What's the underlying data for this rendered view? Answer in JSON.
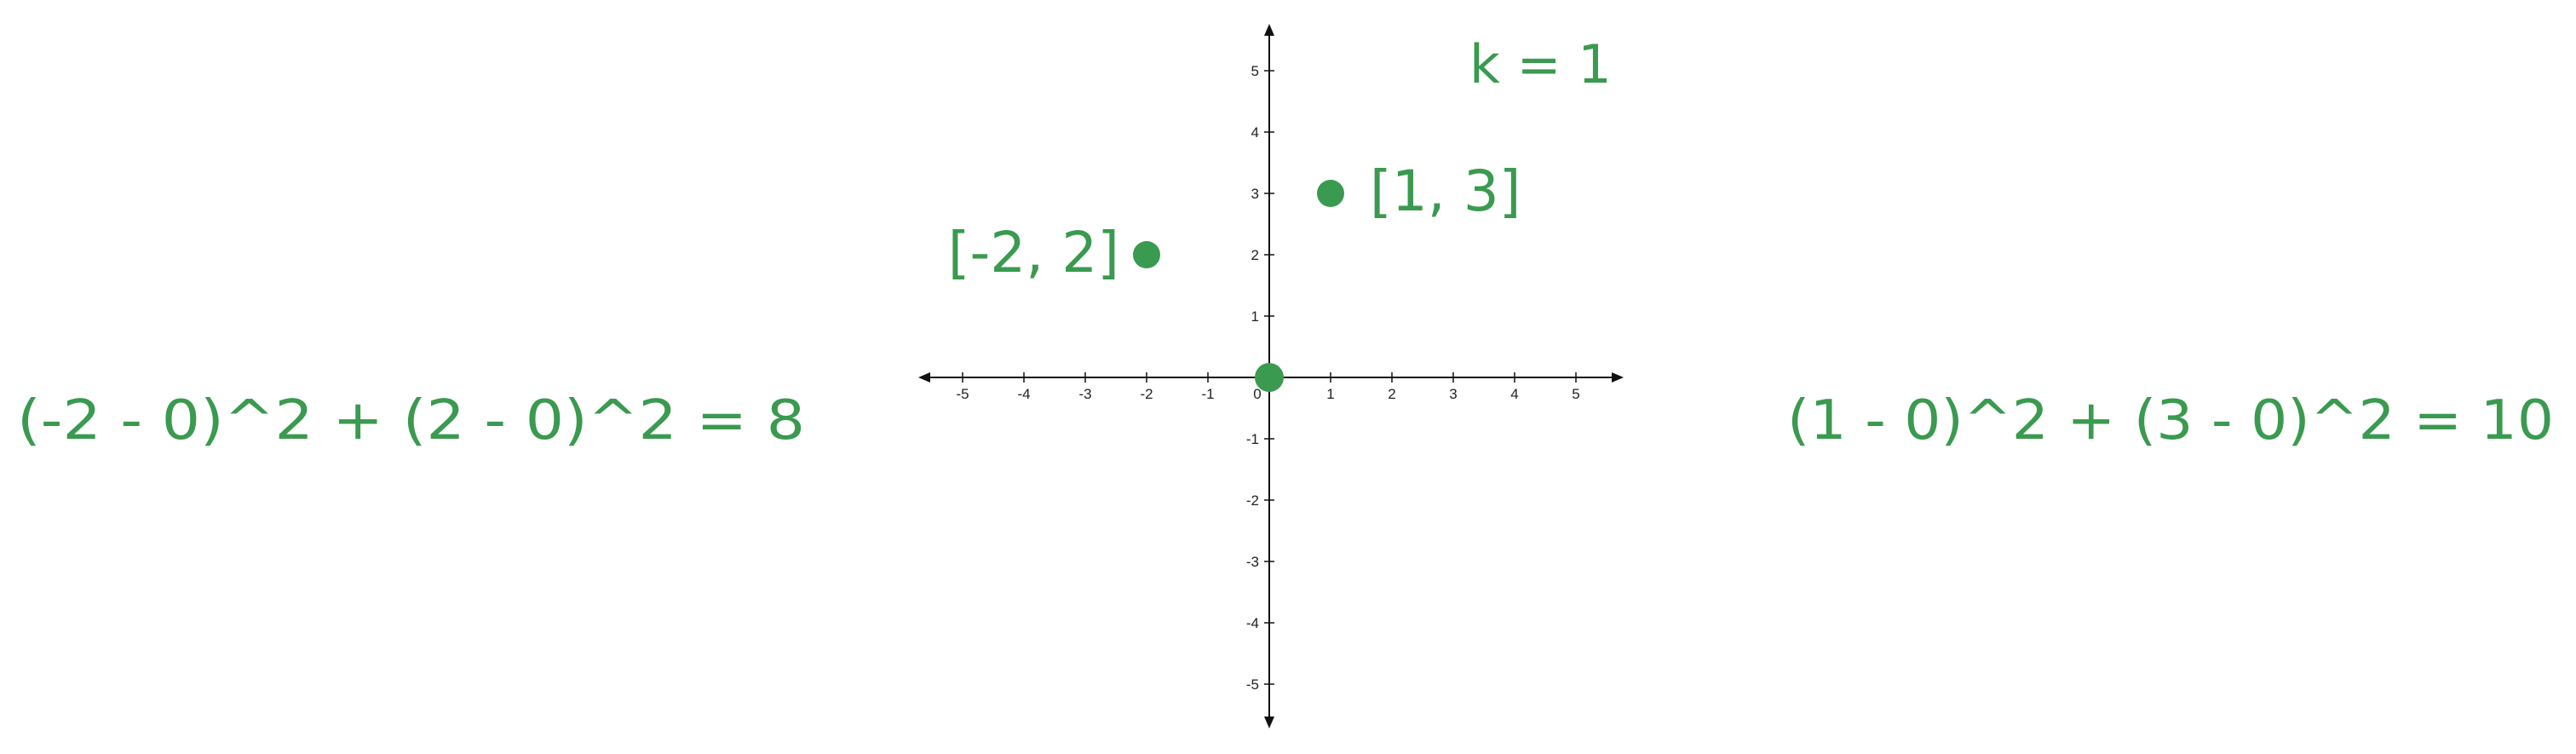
{
  "colors": {
    "accent": "#3a9a4f",
    "axis": "#111111",
    "tick_label": "#222222"
  },
  "annotations": {
    "k_label": "k = 1",
    "left_equation": "(-2 - 0)^2 + (2 - 0)^2 = 8",
    "right_equation": "(1 - 0)^2 + (3 - 0)^2 = 10"
  },
  "chart_data": {
    "type": "scatter",
    "xlim": [
      -5.8,
      5.8
    ],
    "ylim": [
      -5.8,
      5.8
    ],
    "x_ticks": [
      -5,
      -4,
      -3,
      -2,
      -1,
      1,
      2,
      3,
      4,
      5
    ],
    "y_ticks": [
      -5,
      -4,
      -3,
      -2,
      -1,
      1,
      2,
      3,
      4,
      5
    ],
    "origin_label": "0",
    "points": [
      {
        "x": 0,
        "y": 0,
        "label": ""
      },
      {
        "x": -2,
        "y": 2,
        "label": "[-2, 2]"
      },
      {
        "x": 1,
        "y": 3,
        "label": "[1, 3]"
      }
    ]
  }
}
